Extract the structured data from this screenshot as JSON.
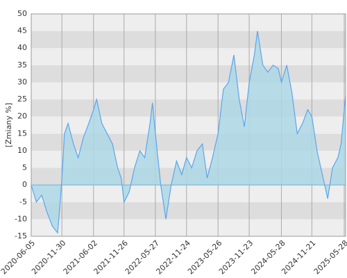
{
  "chart_data": {
    "type": "area",
    "y_label": "[Zmiany %]",
    "x": [
      "2020-06-05",
      "2020-07-05",
      "2020-08-05",
      "2020-09-05",
      "2020-10-05",
      "2020-11-05",
      "2020-11-20",
      "2020-11-30",
      "2020-12-15",
      "2021-01-05",
      "2021-02-05",
      "2021-03-05",
      "2021-04-05",
      "2021-05-05",
      "2021-06-02",
      "2021-06-20",
      "2021-07-20",
      "2021-08-20",
      "2021-09-20",
      "2021-10-20",
      "2021-11-10",
      "2021-11-26",
      "2021-12-26",
      "2022-01-26",
      "2022-02-26",
      "2022-03-26",
      "2022-04-26",
      "2022-05-10",
      "2022-05-27",
      "2022-06-27",
      "2022-07-27",
      "2022-08-27",
      "2022-09-27",
      "2022-10-27",
      "2022-11-24",
      "2022-12-24",
      "2023-01-24",
      "2023-02-24",
      "2023-03-24",
      "2023-04-24",
      "2023-05-26",
      "2023-06-26",
      "2023-07-26",
      "2023-08-26",
      "2023-09-26",
      "2023-10-26",
      "2023-11-23",
      "2023-12-23",
      "2024-01-10",
      "2024-02-10",
      "2024-03-10",
      "2024-04-10",
      "2024-05-10",
      "2024-05-28",
      "2024-06-28",
      "2024-07-28",
      "2024-08-28",
      "2024-09-28",
      "2024-10-28",
      "2024-11-21",
      "2024-12-21",
      "2025-01-21",
      "2025-02-21",
      "2025-03-21",
      "2025-04-21",
      "2025-05-10",
      "2025-05-28",
      "2025-06-05"
    ],
    "values": [
      0,
      -5,
      -3,
      -8,
      -12,
      -14,
      -5,
      2,
      15,
      18,
      12,
      8,
      14,
      18,
      22,
      25,
      18,
      15,
      12,
      5,
      2,
      -5,
      -2,
      5,
      10,
      8,
      18,
      24,
      15,
      0,
      -10,
      0,
      7,
      3,
      8,
      5,
      10,
      12,
      2,
      8,
      15,
      28,
      30,
      38,
      25,
      17,
      30,
      38,
      45,
      35,
      33,
      35,
      34,
      30,
      35,
      27,
      15,
      18,
      22,
      20,
      10,
      3,
      -4,
      5,
      8,
      12,
      22,
      26
    ],
    "color": "#5aa5ec",
    "fill": "#add8e6",
    "xlim": [
      "2020-06-05",
      "2025-06-05"
    ],
    "xticks": [
      "2020-06-05",
      "2020-11-30",
      "2021-06-02",
      "2021-11-26",
      "2022-05-27",
      "2022-11-24",
      "2023-05-26",
      "2023-11-23",
      "2024-05-28",
      "2024-11-21",
      "2025-05-28"
    ],
    "ylim": [
      -15,
      50
    ],
    "yticks": [
      -15,
      -10,
      -5,
      0,
      5,
      10,
      15,
      20,
      25,
      30,
      35,
      40,
      45,
      50
    ],
    "grid": true
  }
}
